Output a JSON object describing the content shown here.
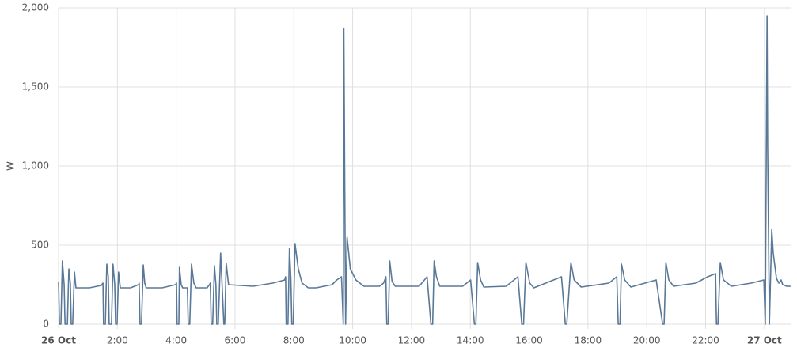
{
  "chart_data": {
    "type": "line",
    "ylabel": "W",
    "color": "#5a7897",
    "grid": true,
    "xlim": [
      0,
      24.92
    ],
    "ylim": [
      0,
      2000
    ],
    "xticks": [
      {
        "value": 0,
        "label": "26 Oct"
      },
      {
        "value": 2,
        "label": "2:00"
      },
      {
        "value": 4,
        "label": "4:00"
      },
      {
        "value": 6,
        "label": "6:00"
      },
      {
        "value": 8,
        "label": "8:00"
      },
      {
        "value": 10,
        "label": "10:00"
      },
      {
        "value": 12,
        "label": "12:00"
      },
      {
        "value": 14,
        "label": "14:00"
      },
      {
        "value": 16,
        "label": "16:00"
      },
      {
        "value": 18,
        "label": "18:00"
      },
      {
        "value": 20,
        "label": "20:00"
      },
      {
        "value": 22,
        "label": "22:00"
      },
      {
        "value": 24,
        "label": "27 Oct"
      }
    ],
    "yticks": [
      0,
      500,
      {
        "value": 1000,
        "label": "1,000"
      },
      {
        "value": 1500,
        "label": "1,500"
      },
      {
        "value": 2000,
        "label": "2,000"
      }
    ],
    "x": [
      0,
      0.03,
      0.08,
      0.13,
      0.19,
      0.22,
      0.3,
      0.35,
      0.4,
      0.43,
      0.48,
      0.54,
      0.59,
      1.05,
      1.45,
      1.51,
      1.53,
      1.59,
      1.64,
      1.69,
      1.72,
      1.8,
      1.85,
      1.91,
      1.94,
      1.99,
      2.04,
      2.1,
      2.45,
      2.72,
      2.74,
      2.77,
      2.82,
      2.88,
      2.93,
      2.98,
      3.52,
      3.98,
      4.01,
      4.03,
      4.09,
      4.11,
      4.17,
      4.22,
      4.38,
      4.41,
      4.46,
      4.52,
      4.6,
      4.68,
      5.05,
      5.13,
      5.16,
      5.19,
      5.24,
      5.3,
      5.35,
      5.38,
      5.43,
      5.51,
      5.56,
      5.62,
      5.65,
      5.7,
      5.78,
      6.61,
      7.28,
      7.69,
      7.72,
      7.74,
      7.8,
      7.85,
      7.9,
      7.93,
      7.98,
      8.04,
      8.15,
      8.28,
      8.49,
      8.76,
      9.3,
      9.46,
      9.62,
      9.68,
      9.7,
      9.73,
      9.76,
      9.81,
      9.92,
      10.11,
      10.38,
      10.91,
      11.05,
      11.13,
      11.16,
      11.21,
      11.26,
      11.34,
      11.45,
      12.26,
      12.53,
      12.66,
      12.72,
      12.77,
      12.85,
      12.96,
      13.74,
      14.01,
      14.14,
      14.19,
      14.25,
      14.35,
      14.46,
      15.22,
      15.62,
      15.75,
      15.81,
      15.89,
      16.02,
      16.16,
      17.1,
      17.23,
      17.28,
      17.42,
      17.53,
      17.77,
      18.71,
      18.98,
      19.03,
      19.09,
      19.14,
      19.25,
      19.46,
      20.32,
      20.54,
      20.59,
      20.65,
      20.75,
      20.91,
      21.67,
      22.07,
      22.34,
      22.37,
      22.42,
      22.5,
      22.61,
      22.88,
      23.55,
      23.98,
      24.03,
      24.09,
      24.11,
      24.17,
      24.25,
      24.3,
      24.41,
      24.49,
      24.57,
      24.62,
      24.76,
      24.89
    ],
    "values": [
      270,
      0,
      0,
      400,
      250,
      0,
      0,
      350,
      260,
      0,
      0,
      330,
      230,
      230,
      245,
      260,
      0,
      0,
      380,
      300,
      0,
      0,
      380,
      250,
      0,
      0,
      330,
      230,
      230,
      250,
      260,
      0,
      0,
      375,
      260,
      230,
      230,
      250,
      260,
      0,
      0,
      360,
      250,
      230,
      230,
      0,
      0,
      380,
      260,
      230,
      230,
      250,
      260,
      0,
      0,
      370,
      250,
      0,
      0,
      450,
      250,
      0,
      0,
      385,
      250,
      240,
      260,
      280,
      300,
      0,
      0,
      480,
      280,
      0,
      0,
      510,
      350,
      260,
      230,
      230,
      250,
      280,
      300,
      0,
      1870,
      900,
      0,
      550,
      350,
      280,
      240,
      240,
      260,
      300,
      0,
      0,
      400,
      270,
      240,
      240,
      300,
      0,
      0,
      400,
      300,
      240,
      240,
      280,
      0,
      0,
      390,
      280,
      235,
      240,
      300,
      0,
      0,
      390,
      260,
      230,
      300,
      0,
      0,
      390,
      280,
      235,
      260,
      300,
      0,
      0,
      380,
      280,
      235,
      280,
      0,
      0,
      390,
      280,
      240,
      260,
      300,
      320,
      0,
      0,
      390,
      280,
      240,
      260,
      280,
      0,
      1950,
      1130,
      0,
      600,
      450,
      290,
      260,
      280,
      250,
      240,
      240
    ]
  }
}
